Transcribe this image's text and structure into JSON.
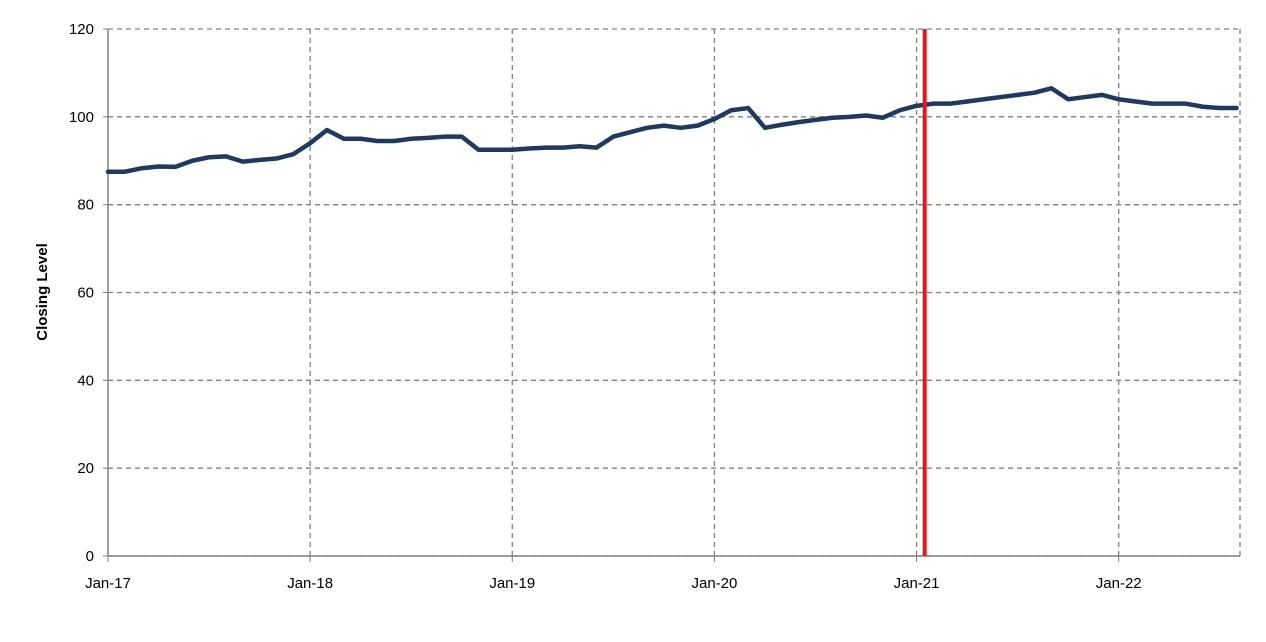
{
  "chart_data": {
    "type": "line",
    "y_label": "Closing Level",
    "x": [
      2017,
      2017.083,
      2017.167,
      2017.25,
      2017.333,
      2017.417,
      2017.5,
      2017.583,
      2017.667,
      2017.75,
      2017.833,
      2017.917,
      2018,
      2018.083,
      2018.167,
      2018.25,
      2018.333,
      2018.417,
      2018.5,
      2018.583,
      2018.667,
      2018.75,
      2018.833,
      2018.917,
      2019,
      2019.083,
      2019.167,
      2019.25,
      2019.333,
      2019.417,
      2019.5,
      2019.583,
      2019.667,
      2019.75,
      2019.833,
      2019.917,
      2020,
      2020.083,
      2020.167,
      2020.25,
      2020.333,
      2020.417,
      2020.5,
      2020.583,
      2020.667,
      2020.75,
      2020.833,
      2020.917,
      2021,
      2021.083,
      2021.167,
      2021.25,
      2021.333,
      2021.417,
      2021.5,
      2021.583,
      2021.667,
      2021.75,
      2021.833,
      2021.917,
      2022,
      2022.083,
      2022.167,
      2022.25,
      2022.333,
      2022.417,
      2022.5,
      2022.583
    ],
    "series": [
      {
        "color": "#1f3864",
        "values": [
          87.5,
          87.5,
          88.3,
          88.7,
          88.6,
          90,
          90.8,
          91,
          89.8,
          90.2,
          90.5,
          91.5,
          94,
          97,
          95,
          95,
          94.5,
          94.5,
          95,
          95.2,
          95.5,
          95.5,
          92.5,
          92.5,
          92.5,
          92.8,
          93,
          93,
          93.3,
          93,
          95.5,
          96.5,
          97.5,
          98,
          97.5,
          98,
          99.5,
          101.5,
          102,
          97.5,
          98.2,
          98.8,
          99.3,
          99.8,
          100,
          100.3,
          99.8,
          101.5,
          102.5,
          103,
          103,
          103.5,
          104,
          104.5,
          105,
          105.5,
          106.5,
          104,
          104.5,
          105,
          104,
          103.5,
          103,
          103,
          103,
          102.3,
          102,
          102
        ]
      }
    ],
    "xlim": [
      2017,
      2022.6
    ],
    "xticks": [
      {
        "value": 2017,
        "label": "Jan-17"
      },
      {
        "value": 2018,
        "label": "Jan-18"
      },
      {
        "value": 2019,
        "label": "Jan-19"
      },
      {
        "value": 2020,
        "label": "Jan-20"
      },
      {
        "value": 2021,
        "label": "Jan-21"
      },
      {
        "value": 2022,
        "label": "Jan-22"
      }
    ],
    "ylim": [
      0,
      120
    ],
    "yticks": [
      0,
      20,
      40,
      60,
      80,
      100,
      120
    ],
    "grid": true,
    "vline": {
      "x": 2021.04,
      "color": "#e8141b"
    }
  }
}
